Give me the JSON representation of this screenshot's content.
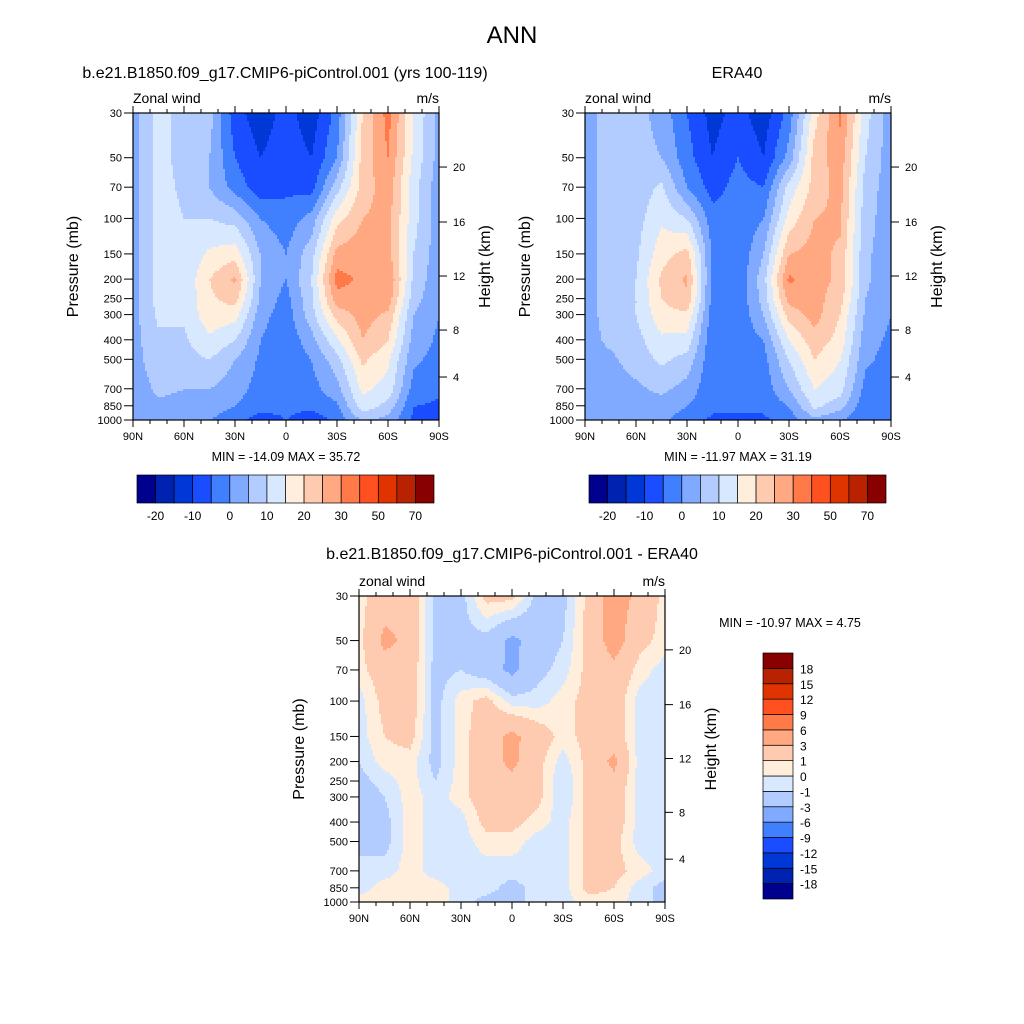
{
  "figure": {
    "title": "ANN"
  },
  "chart_data": [
    {
      "type": "heatmap",
      "subtype": "filled-contour",
      "title": "b.e21.B1850.f09_g17.CMIP6-piControl.001 (yrs 100-119)",
      "left_string": "Zonal wind",
      "right_string": "m/s",
      "ylabel": "Pressure (mb)",
      "y2label": "Height (km)",
      "stats": "MIN = -14.09  MAX = 35.72",
      "x_tick_labels": [
        "90N",
        "60N",
        "30N",
        "0",
        "30S",
        "60S",
        "90S"
      ],
      "y_tick_labels": [
        "30",
        "50",
        "70",
        "100",
        "150",
        "200",
        "250",
        "300",
        "400",
        "500",
        "700",
        "850",
        "1000"
      ],
      "y2_tick_labels": [
        "4",
        "8",
        "12",
        "16",
        "20"
      ],
      "y_scale": "log",
      "xlim": [
        90,
        -90
      ],
      "ylim": [
        1000,
        30
      ],
      "colorbar": {
        "orientation": "horizontal",
        "levels": [
          -20,
          -15,
          -10,
          -5,
          0,
          5,
          10,
          15,
          20,
          25,
          30,
          40,
          50,
          60,
          70
        ],
        "labels": [
          "-20",
          "-10",
          "0",
          "10",
          "20",
          "30",
          "50",
          "70"
        ],
        "colors": [
          "#00008f",
          "#0022b0",
          "#0038d8",
          "#1a4dff",
          "#4080ff",
          "#80aaff",
          "#b3ccff",
          "#d8e9ff",
          "#ffeedc",
          "#ffcbb0",
          "#ffa882",
          "#ff7a48",
          "#ff5020",
          "#e03400",
          "#b82200",
          "#880000"
        ]
      },
      "lat": [
        90,
        75,
        60,
        45,
        30,
        15,
        0,
        -15,
        -30,
        -45,
        -60,
        -75,
        -90
      ],
      "pressure": [
        30,
        50,
        70,
        100,
        150,
        200,
        250,
        300,
        400,
        500,
        700,
        850,
        1000
      ],
      "values": [
        [
          3,
          12,
          8,
          7,
          -8,
          -13,
          -8,
          -13,
          -3,
          20,
          32,
          15,
          3
        ],
        [
          3,
          12,
          8,
          5,
          -5,
          -10,
          -7,
          -10,
          0,
          22,
          30,
          14,
          3
        ],
        [
          3,
          12,
          9,
          5,
          -2,
          -8,
          -6,
          -7,
          8,
          22,
          28,
          12,
          2
        ],
        [
          3,
          12,
          10,
          10,
          8,
          0,
          -3,
          2,
          18,
          25,
          27,
          12,
          2
        ],
        [
          3,
          12,
          11,
          16,
          18,
          5,
          0,
          8,
          27,
          28,
          27,
          10,
          2
        ],
        [
          3,
          12,
          11,
          20,
          26,
          5,
          0,
          10,
          32,
          29,
          30,
          9,
          1
        ],
        [
          3,
          12,
          11,
          19,
          22,
          4,
          -2,
          9,
          28,
          28,
          28,
          7,
          1
        ],
        [
          3,
          11,
          11,
          18,
          17,
          2,
          -3,
          8,
          22,
          27,
          24,
          5,
          0
        ],
        [
          3,
          9,
          9,
          14,
          10,
          0,
          -4,
          3,
          14,
          25,
          20,
          3,
          -1
        ],
        [
          3,
          8,
          8,
          10,
          5,
          -1,
          -4,
          0,
          8,
          21,
          16,
          1,
          -2
        ],
        [
          2,
          6,
          5,
          5,
          2,
          -2,
          -4,
          -2,
          3,
          16,
          13,
          -2,
          -4
        ],
        [
          2,
          4,
          3,
          2,
          0,
          -3,
          -4,
          -4,
          -1,
          13,
          8,
          -5,
          -6
        ],
        [
          1,
          2,
          2,
          0,
          -3,
          -8,
          -5,
          -8,
          -4,
          5,
          3,
          -6,
          -8
        ]
      ]
    },
    {
      "type": "heatmap",
      "subtype": "filled-contour",
      "title": "ERA40",
      "left_string": "zonal wind",
      "right_string": "m/s",
      "ylabel": "Pressure (mb)",
      "y2label": "Height (km)",
      "stats": "MIN = -11.97  MAX = 31.19",
      "x_tick_labels": [
        "90N",
        "60N",
        "30N",
        "0",
        "30S",
        "60S",
        "90S"
      ],
      "y_tick_labels": [
        "30",
        "50",
        "70",
        "100",
        "150",
        "200",
        "250",
        "300",
        "400",
        "500",
        "700",
        "850",
        "1000"
      ],
      "y2_tick_labels": [
        "4",
        "8",
        "12",
        "16",
        "20"
      ],
      "y_scale": "log",
      "xlim": [
        90,
        -90
      ],
      "ylim": [
        1000,
        30
      ],
      "colorbar": {
        "orientation": "horizontal",
        "levels": [
          -20,
          -15,
          -10,
          -5,
          0,
          5,
          10,
          15,
          20,
          25,
          30,
          40,
          50,
          60,
          70
        ],
        "labels": [
          "-20",
          "-10",
          "0",
          "10",
          "20",
          "30",
          "50",
          "70"
        ],
        "colors": [
          "#00008f",
          "#0022b0",
          "#0038d8",
          "#1a4dff",
          "#4080ff",
          "#80aaff",
          "#b3ccff",
          "#d8e9ff",
          "#ffeedc",
          "#ffcbb0",
          "#ffa882",
          "#ff7a48",
          "#ff5020",
          "#e03400",
          "#b82200",
          "#880000"
        ]
      },
      "lat": [
        90,
        75,
        60,
        45,
        30,
        15,
        0,
        -15,
        -30,
        -45,
        -60,
        -75,
        -90
      ],
      "pressure": [
        30,
        50,
        70,
        100,
        150,
        200,
        250,
        300,
        400,
        500,
        700,
        850,
        1000
      ],
      "values": [
        [
          3,
          7,
          7,
          3,
          -5,
          -12,
          -8,
          -13,
          -3,
          18,
          31,
          12,
          2
        ],
        [
          3,
          7,
          7,
          5,
          -3,
          -10,
          -5,
          -10,
          2,
          22,
          28,
          10,
          2
        ],
        [
          3,
          7,
          7,
          11,
          0,
          -7,
          -3,
          -5,
          12,
          22,
          27,
          8,
          2
        ],
        [
          3,
          7,
          8,
          14,
          10,
          -3,
          -4,
          0,
          17,
          25,
          26,
          7,
          2
        ],
        [
          3,
          7,
          9,
          18,
          22,
          -1,
          -4,
          5,
          25,
          27,
          24,
          6,
          2
        ],
        [
          3,
          7,
          10,
          21,
          26,
          -2,
          -4,
          8,
          31,
          27,
          24,
          6,
          1
        ],
        [
          3,
          7,
          10,
          20,
          24,
          -2,
          -4,
          7,
          27,
          27,
          22,
          5,
          1
        ],
        [
          3,
          7,
          10,
          18,
          19,
          -3,
          -4,
          5,
          22,
          27,
          20,
          4,
          0
        ],
        [
          3,
          6,
          8,
          14,
          13,
          -4,
          -4,
          0,
          15,
          23,
          18,
          2,
          -1
        ],
        [
          3,
          4,
          7,
          11,
          8,
          -4,
          -4,
          -2,
          10,
          20,
          15,
          1,
          -2
        ],
        [
          3,
          3,
          4,
          6,
          3,
          -4,
          -4,
          -3,
          5,
          15,
          12,
          -2,
          -3
        ],
        [
          2,
          2,
          2,
          3,
          0,
          -4,
          -4,
          -4,
          0,
          11,
          7,
          -4,
          -4
        ],
        [
          2,
          2,
          1,
          1,
          -3,
          -6,
          -6,
          -6,
          -3,
          3,
          0,
          -4,
          -4
        ]
      ]
    },
    {
      "type": "heatmap",
      "subtype": "filled-contour",
      "title": "b.e21.B1850.f09_g17.CMIP6-piControl.001 - ERA40",
      "left_string": "zonal wind",
      "right_string": "m/s",
      "ylabel": "Pressure (mb)",
      "y2label": "Height (km)",
      "stats": "MIN = -10.97  MAX =   4.75",
      "x_tick_labels": [
        "90N",
        "60N",
        "30N",
        "0",
        "30S",
        "60S",
        "90S"
      ],
      "y_tick_labels": [
        "30",
        "50",
        "70",
        "100",
        "150",
        "200",
        "250",
        "300",
        "400",
        "500",
        "700",
        "850",
        "1000"
      ],
      "y2_tick_labels": [
        "4",
        "8",
        "12",
        "16",
        "20"
      ],
      "y_scale": "log",
      "xlim": [
        90,
        -90
      ],
      "ylim": [
        1000,
        30
      ],
      "colorbar": {
        "orientation": "vertical",
        "levels": [
          -18,
          -15,
          -12,
          -9,
          -6,
          -3,
          -1,
          0,
          1,
          3,
          6,
          9,
          12,
          15,
          18
        ],
        "labels": [
          "-18",
          "-15",
          "-12",
          "-9",
          "-6",
          "-3",
          "-1",
          "0",
          "1",
          "3",
          "6",
          "9",
          "12",
          "15",
          "18"
        ],
        "colors": [
          "#00008f",
          "#0022b0",
          "#0038d8",
          "#1a4dff",
          "#4080ff",
          "#80aaff",
          "#b3ccff",
          "#d8e9ff",
          "#ffeedc",
          "#ffcbb0",
          "#ffa882",
          "#ff7a48",
          "#ff5020",
          "#e03400",
          "#b82200",
          "#880000"
        ]
      },
      "lat": [
        90,
        75,
        60,
        45,
        30,
        15,
        0,
        -15,
        -30,
        -45,
        -60,
        -75,
        -90
      ],
      "pressure": [
        30,
        50,
        70,
        100,
        150,
        200,
        250,
        300,
        400,
        500,
        700,
        850,
        1000
      ],
      "values": [
        [
          0.5,
          2,
          2.5,
          -1.5,
          -1.5,
          1.5,
          1.5,
          -1.5,
          -1.5,
          1.5,
          4,
          2.5,
          0.5
        ],
        [
          0.5,
          3.5,
          2.5,
          -1.5,
          -1.5,
          -1.5,
          -3.5,
          -2,
          -1,
          1.5,
          4,
          1.5,
          0.5
        ],
        [
          0.5,
          2,
          2,
          -1.5,
          -1,
          -2,
          -3.5,
          -1.5,
          -0.5,
          1.5,
          2.5,
          0.5,
          -0.5
        ],
        [
          -0.5,
          1.5,
          2,
          -1.5,
          0.5,
          1.5,
          -0.5,
          -0.5,
          0.5,
          1.5,
          2,
          -0.5,
          -0.5
        ],
        [
          -0.5,
          1,
          1.5,
          -1.5,
          0.5,
          2,
          3.5,
          2,
          0.5,
          1.5,
          2,
          -0.5,
          -0.5
        ],
        [
          -1,
          0.5,
          0.5,
          -1.5,
          0.5,
          2,
          3.5,
          1.5,
          -0.5,
          1.5,
          3.5,
          -0.5,
          -0.5
        ],
        [
          -1.5,
          -0.5,
          0.5,
          -1,
          0.5,
          2,
          2.5,
          1.5,
          -1,
          1.5,
          2.5,
          -0.5,
          -0.5
        ],
        [
          -2,
          -1,
          0.5,
          -0.5,
          0.5,
          2,
          2,
          1.5,
          -1,
          1.5,
          2,
          -0.5,
          -0.5
        ],
        [
          -2,
          -1.5,
          0.5,
          -0.5,
          -0.5,
          1.5,
          1.5,
          0.5,
          -0.5,
          1.5,
          2,
          -0.5,
          -0.5
        ],
        [
          -1.5,
          -1.5,
          0.5,
          -0.5,
          -0.5,
          0.5,
          0.5,
          -0.5,
          -0.5,
          1.5,
          1.5,
          -0.5,
          -0.5
        ],
        [
          -0.5,
          -0.5,
          0.5,
          -0.5,
          -0.5,
          -0.5,
          -0.5,
          -0.5,
          -0.5,
          1.5,
          1.5,
          0.5,
          -0.5
        ],
        [
          -0.5,
          0.5,
          0.5,
          0.5,
          -0.5,
          -0.5,
          -1.5,
          -0.5,
          -0.5,
          1.5,
          1,
          -0.5,
          -1.5
        ],
        [
          0.5,
          0.5,
          1,
          0.5,
          -0.5,
          -1.5,
          -1.5,
          -0.5,
          -0.5,
          0.5,
          0.5,
          -0.5,
          -1.5
        ]
      ]
    }
  ]
}
